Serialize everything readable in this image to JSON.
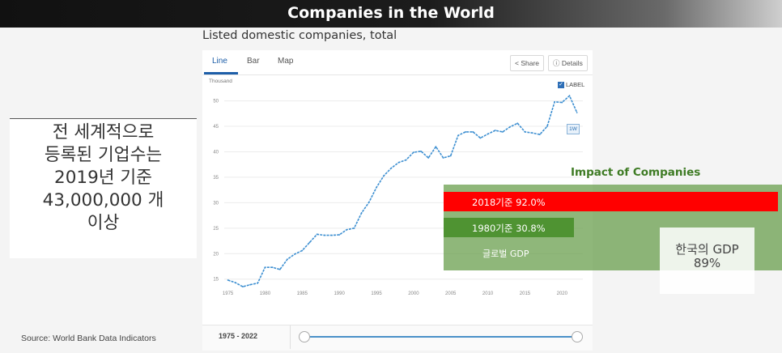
{
  "header": {
    "title": "Companies in the World"
  },
  "chart": {
    "title": "Listed domestic companies, total",
    "tabs": [
      "Line",
      "Bar",
      "Map"
    ],
    "share_label": "Share",
    "details_label": "Details",
    "unit_label": "Thousand",
    "label_toggle": "LABEL",
    "last_value_tag": "1W",
    "range_label": "1975 - 2022"
  },
  "chart_data": {
    "type": "line",
    "title": "Listed domestic companies, total",
    "ylabel": "Thousand",
    "ylim": [
      14,
      52
    ],
    "y_ticks": [
      "15",
      "20",
      "25",
      "30",
      "35",
      "40",
      "45",
      "50"
    ],
    "x_ticks": [
      "1975",
      "1980",
      "1985",
      "1990",
      "1995",
      "2000",
      "2005",
      "2010",
      "2015",
      "2020"
    ],
    "x": [
      1975,
      1976,
      1977,
      1978,
      1979,
      1980,
      1981,
      1982,
      1983,
      1984,
      1985,
      1986,
      1987,
      1988,
      1989,
      1990,
      1991,
      1992,
      1993,
      1994,
      1995,
      1996,
      1997,
      1998,
      1999,
      2000,
      2001,
      2002,
      2003,
      2004,
      2005,
      2006,
      2007,
      2008,
      2009,
      2010,
      2011,
      2012,
      2013,
      2014,
      2015,
      2016,
      2017,
      2018,
      2019,
      2020,
      2021,
      2022
    ],
    "series": [
      {
        "name": "Listed domestic companies",
        "values": [
          14.8,
          14.3,
          13.5,
          13.9,
          14.2,
          17.3,
          17.3,
          16.9,
          18.9,
          19.9,
          20.6,
          22.2,
          23.8,
          23.6,
          23.6,
          23.7,
          24.7,
          25.0,
          28.0,
          30.1,
          33.0,
          35.3,
          36.8,
          37.9,
          38.4,
          39.9,
          40.1,
          38.8,
          41.0,
          38.8,
          39.2,
          43.2,
          43.9,
          43.9,
          42.7,
          43.5,
          44.2,
          43.9,
          44.9,
          45.6,
          43.9,
          43.7,
          43.4,
          45.0,
          49.8,
          49.7,
          51.0,
          47.7
        ]
      }
    ]
  },
  "side_note": {
    "text": "전 세계적으로\n등록된 기업수는\n2019년 기준\n43,000,000 개\n이상"
  },
  "impact": {
    "title": "Impact of Companies",
    "bar_2018": "2018기준 92.0%",
    "bar_1980": "1980기준 30.8%",
    "global_gdp": "글로벌 GDP",
    "korea_gdp": "한국의 GDP\n89%"
  },
  "source": "Source: World Bank Data  Indicators"
}
